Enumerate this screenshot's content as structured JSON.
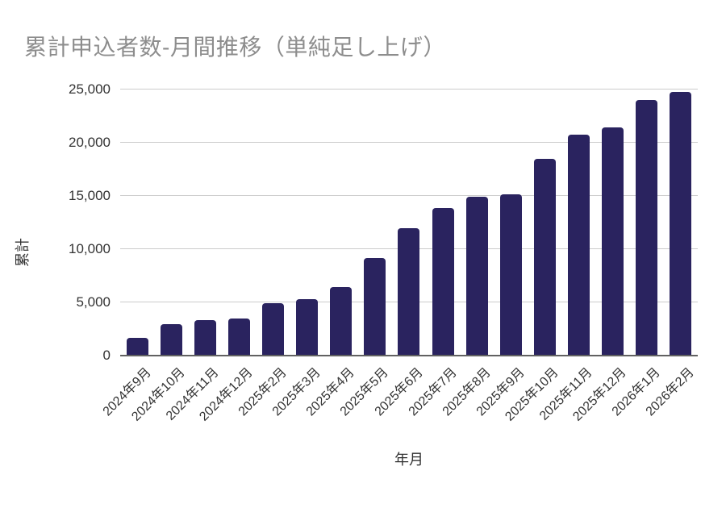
{
  "page": {
    "background": "#ffffff"
  },
  "chart": {
    "title": "累計申込者数-月間推移（単純足し上げ）",
    "y_axis_title": "累計",
    "x_axis_title": "年月"
  },
  "chart_data": {
    "type": "bar",
    "title": "累計申込者数-月間推移（単純足し上げ）",
    "xlabel": "年月",
    "ylabel": "累計",
    "categories": [
      "2024年9月",
      "2024年10月",
      "2024年11月",
      "2024年12月",
      "2025年2月",
      "2025年3月",
      "2025年4月",
      "2025年5月",
      "2025年6月",
      "2025年7月",
      "2025年8月",
      "2025年9月",
      "2025年10月",
      "2025年11月",
      "2025年12月",
      "2026年1月",
      "2026年2月"
    ],
    "values": [
      1700,
      2950,
      3300,
      3450,
      4950,
      5300,
      6450,
      9150,
      12000,
      13900,
      14900,
      15150,
      18450,
      20750,
      21450,
      24050,
      24800
    ],
    "ylim": [
      0,
      25000
    ],
    "yticks": [
      0,
      5000,
      10000,
      15000,
      20000,
      25000
    ],
    "ytick_labels": [
      "0",
      "5,000",
      "10,000",
      "15,000",
      "20,000",
      "25,000"
    ],
    "grid": true,
    "legend_position": "none",
    "colors": {
      "bar": "#2a235f",
      "title": "#8d8d8d",
      "axis_text": "#333333",
      "gridline": "#cccccc",
      "baseline": "#616161"
    }
  }
}
